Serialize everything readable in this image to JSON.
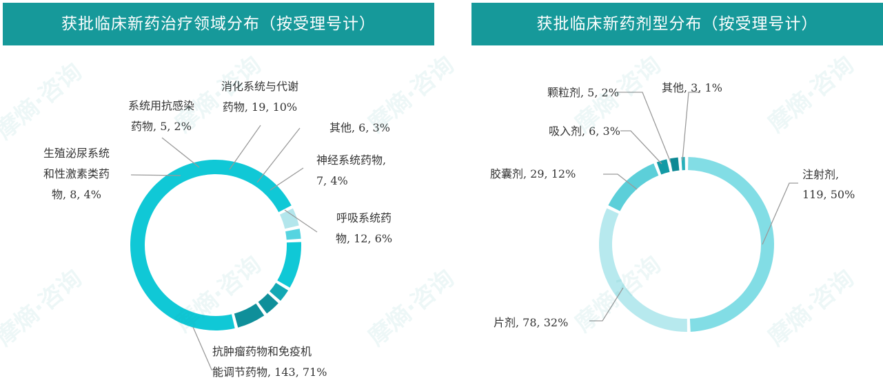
{
  "watermark": "摩熵·咨询",
  "chart_data": [
    {
      "type": "pie",
      "donut": true,
      "title": "获批临床新药治疗领域分布（按受理号计）",
      "slices": [
        {
          "name": "抗肿瘤药物和免疫机能调节药物",
          "value": 143,
          "percent": "71%",
          "label_lines": [
            "抗肿瘤药物和免疫机",
            "能调节药物, 143, 71%"
          ],
          "color": "#10c8d6"
        },
        {
          "name": "生殖泌尿系统和性激素类药物",
          "value": 8,
          "percent": "4%",
          "label_lines": [
            "生殖泌尿系统",
            "和性激素类药",
            "物, 8, 4%"
          ],
          "color": "#b3e6ec"
        },
        {
          "name": "系统用抗感染药物",
          "value": 5,
          "percent": "2%",
          "label_lines": [
            "系统用抗感染",
            "药物, 5, 2%"
          ],
          "color": "#56d4e0"
        },
        {
          "name": "消化系统与代谢药物",
          "value": 19,
          "percent": "10%",
          "label_lines": [
            "消化系统与代谢",
            "药物, 19, 10%"
          ],
          "color": "#10c8d6"
        },
        {
          "name": "其他",
          "value": 6,
          "percent": "3%",
          "label_lines": [
            "其他, 6, 3%"
          ],
          "color": "#12a8b4"
        },
        {
          "name": "神经系统药物",
          "value": 7,
          "percent": "4%",
          "label_lines": [
            "神经系统药物,",
            "7, 4%"
          ],
          "color": "#0f8f9a"
        },
        {
          "name": "呼吸系统药物",
          "value": 12,
          "percent": "6%",
          "label_lines": [
            "呼吸系统药",
            "物, 12, 6%"
          ],
          "color": "#0f8f9a"
        }
      ]
    },
    {
      "type": "pie",
      "donut": true,
      "title": "获批临床新药剂型分布（按受理号计）",
      "slices": [
        {
          "name": "注射剂",
          "value": 119,
          "percent": "50%",
          "label_lines": [
            "注射剂,",
            "119, 50%"
          ],
          "color": "#82dde5"
        },
        {
          "name": "片剂",
          "value": 78,
          "percent": "32%",
          "label_lines": [
            "片剂, 78, 32%"
          ],
          "color": "#b7e9ee"
        },
        {
          "name": "胶囊剂",
          "value": 29,
          "percent": "12%",
          "label_lines": [
            "胶囊剂, 29, 12%"
          ],
          "color": "#5ccfd9"
        },
        {
          "name": "吸入剂",
          "value": 6,
          "percent": "3%",
          "label_lines": [
            "吸入剂, 6, 3%"
          ],
          "color": "#139aa5"
        },
        {
          "name": "颗粒剂",
          "value": 5,
          "percent": "2%",
          "label_lines": [
            "颗粒剂, 5, 2%"
          ],
          "color": "#0e8994"
        },
        {
          "name": "其他",
          "value": 3,
          "percent": "1%",
          "label_lines": [
            "其他, 3, 1%"
          ],
          "color": "#27b0bb"
        }
      ]
    }
  ]
}
